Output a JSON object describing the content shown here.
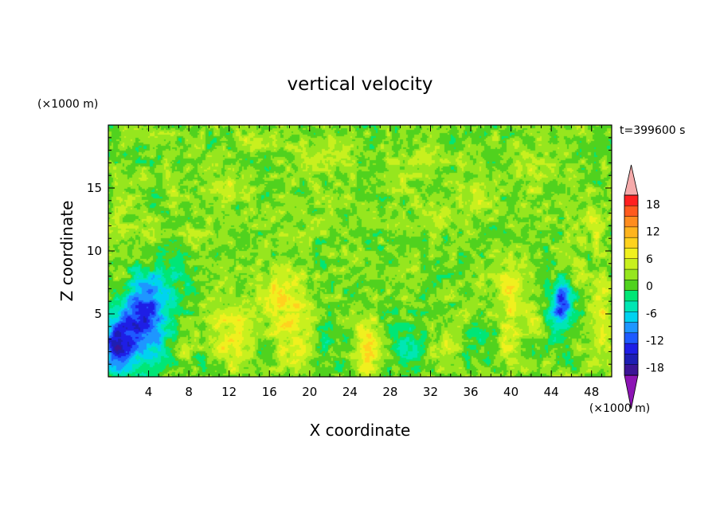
{
  "chart_data": {
    "type": "heatmap",
    "title": "vertical velocity",
    "xlabel": "X coordinate",
    "ylabel": "Z coordinate",
    "x_unit": "(×1000 m)",
    "y_unit": "(×1000 m)",
    "time_label": "t=399600 s",
    "xlim": [
      0,
      50
    ],
    "ylim": [
      0,
      20
    ],
    "x_ticks": [
      4,
      8,
      12,
      16,
      20,
      24,
      28,
      32,
      36,
      40,
      44,
      48
    ],
    "y_ticks": [
      5,
      10,
      15
    ],
    "colorbar": {
      "labels": [
        18,
        12,
        6,
        0,
        -6,
        -12,
        -18
      ],
      "colors": [
        "#ff2020",
        "#ff5a1e",
        "#ff8c1e",
        "#ffb41e",
        "#ffd21e",
        "#f0f01e",
        "#c8f01e",
        "#96e61e",
        "#50d21e",
        "#00e676",
        "#00e6b4",
        "#00d2f0",
        "#1e96ff",
        "#1e5aff",
        "#1e1ee6",
        "#1e1eb4",
        "#3c1496"
      ],
      "over_color": "#f5aaaa",
      "under_color": "#8c14b4"
    },
    "background_value": 0,
    "features": [
      {
        "x": 3.2,
        "z": 4.3,
        "w": -14,
        "rx": 2.5,
        "rz": 3.0
      },
      {
        "x": 0.8,
        "z": 2.3,
        "w": -13,
        "rx": 1.5,
        "rz": 1.8
      },
      {
        "x": 5.0,
        "z": 7.5,
        "w": -5,
        "rx": 3.0,
        "rz": 2.5
      },
      {
        "x": 1.2,
        "z": 7.0,
        "w": 4,
        "rx": 1.0,
        "rz": 1.5
      },
      {
        "x": 12.5,
        "z": 3.5,
        "w": 6,
        "rx": 2.5,
        "rz": 3.0
      },
      {
        "x": 18.3,
        "z": 4.5,
        "w": 6,
        "rx": 2.0,
        "rz": 3.5
      },
      {
        "x": 16.5,
        "z": 7.0,
        "w": 3,
        "rx": 1.5,
        "rz": 1.5
      },
      {
        "x": 25.8,
        "z": 2.5,
        "w": 8,
        "rx": 1.2,
        "rz": 2.0
      },
      {
        "x": 21.5,
        "z": 3.0,
        "w": -3,
        "rx": 1.2,
        "rz": 2.5
      },
      {
        "x": 29.5,
        "z": 2.5,
        "w": -4,
        "rx": 1.8,
        "rz": 2.0
      },
      {
        "x": 33.5,
        "z": 2.5,
        "w": 3,
        "rx": 1.2,
        "rz": 1.5
      },
      {
        "x": 40.0,
        "z": 6.5,
        "w": 5,
        "rx": 1.5,
        "rz": 2.5
      },
      {
        "x": 40.0,
        "z": 2.5,
        "w": 4,
        "rx": 1.2,
        "rz": 2.0
      },
      {
        "x": 42.5,
        "z": 4.0,
        "w": 3,
        "rx": 1.0,
        "rz": 1.5
      },
      {
        "x": 45.0,
        "z": 6.0,
        "w": -13,
        "rx": 1.0,
        "rz": 1.5
      },
      {
        "x": 44.5,
        "z": 4.0,
        "w": -4,
        "rx": 1.5,
        "rz": 2.0
      },
      {
        "x": 49.0,
        "z": 6.0,
        "w": 5,
        "rx": 1.0,
        "rz": 2.0
      },
      {
        "x": 49.0,
        "z": 2.5,
        "w": 4,
        "rx": 1.0,
        "rz": 1.5
      },
      {
        "x": 47.0,
        "z": 8.0,
        "w": 3,
        "rx": 1.0,
        "rz": 1.0
      },
      {
        "x": 11.5,
        "z": 15.0,
        "w": 4,
        "rx": 2.0,
        "rz": 1.0
      },
      {
        "x": 6.5,
        "z": 14.5,
        "w": 4,
        "rx": 0.8,
        "rz": 1.0
      },
      {
        "x": 21.0,
        "z": 17.5,
        "w": 2,
        "rx": 4.0,
        "rz": 2.0
      },
      {
        "x": 42.0,
        "z": 16.0,
        "w": 3,
        "rx": 1.5,
        "rz": 2.0
      },
      {
        "x": 36.0,
        "z": 14.0,
        "w": 3,
        "rx": 2.0,
        "rz": 1.5
      },
      {
        "x": 33.0,
        "z": 13.0,
        "w": 3,
        "rx": 1.0,
        "rz": 1.0
      },
      {
        "x": 9.0,
        "z": 11.5,
        "w": 2,
        "rx": 2.0,
        "rz": 1.5
      },
      {
        "x": 14.5,
        "z": 19.0,
        "w": 2,
        "rx": 2.0,
        "rz": 0.8
      },
      {
        "x": 3.5,
        "z": 10.0,
        "w": 3,
        "rx": 1.5,
        "rz": 2.0
      },
      {
        "x": 1.0,
        "z": 13.0,
        "w": 3,
        "rx": 1.0,
        "rz": 2.0
      },
      {
        "x": 48.0,
        "z": 12.0,
        "w": 3,
        "rx": 1.5,
        "rz": 2.0
      },
      {
        "x": 30.0,
        "z": 16.5,
        "w": 2,
        "rx": 3.0,
        "rz": 1.5
      },
      {
        "x": 10.0,
        "z": 1.0,
        "w": -3,
        "rx": 1.2,
        "rz": 1.0
      },
      {
        "x": 37.0,
        "z": 3.0,
        "w": -3,
        "rx": 1.5,
        "rz": 1.5
      },
      {
        "x": 15.5,
        "z": 2.0,
        "w": -2,
        "rx": 1.0,
        "rz": 1.0
      },
      {
        "x": 7.5,
        "z": 2.5,
        "w": 3,
        "rx": 0.8,
        "rz": 1.0
      },
      {
        "x": 17.0,
        "z": 13.0,
        "w": 2,
        "rx": 1.5,
        "rz": 1.0
      }
    ]
  }
}
